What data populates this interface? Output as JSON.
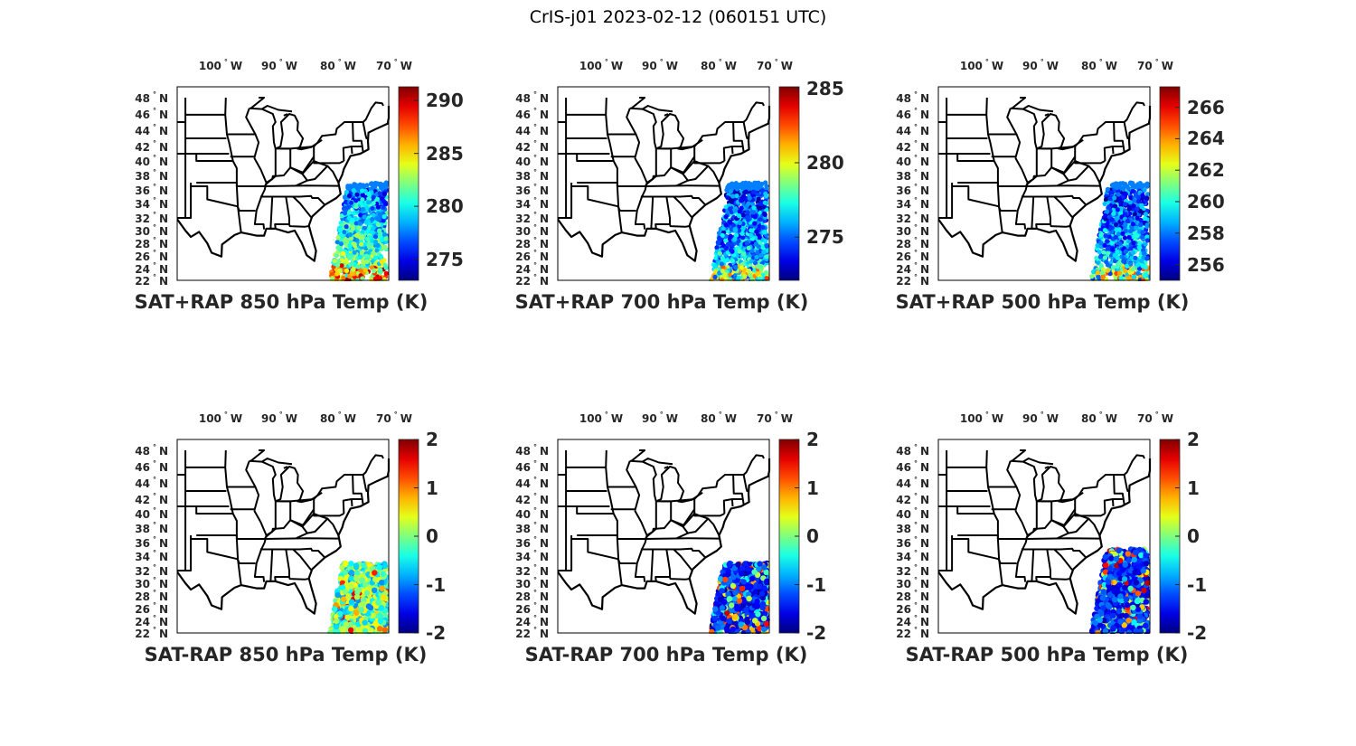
{
  "figure": {
    "title": "CrIS-j01 2023-02-12 (060151 UTC)"
  },
  "axes": {
    "lon_ticks": [
      "100",
      "90",
      "80",
      "70"
    ],
    "lon_suffix": "W",
    "lat_ticks": [
      "48",
      "46",
      "44",
      "42",
      "40",
      "38",
      "36",
      "34",
      "32",
      "30",
      "28",
      "26",
      "24",
      "22"
    ],
    "lat_suffix": "N",
    "degree_symbol": "°"
  },
  "colormap": "jet",
  "chart_data": [
    {
      "type": "scatter",
      "title": "SAT+RAP 850 hPa Temp (K)",
      "clim": [
        273.0,
        291.3
      ],
      "colorbar_ticks": [
        "275",
        "280",
        "285",
        "290"
      ],
      "swath_lat": [
        22,
        37
      ]
    },
    {
      "type": "scatter",
      "title": "SAT+RAP 700 hPa Temp (K)",
      "clim": [
        272.1,
        285.1
      ],
      "colorbar_ticks": [
        "275",
        "280",
        "285"
      ],
      "swath_lat": [
        22,
        37
      ]
    },
    {
      "type": "scatter",
      "title": "SAT+RAP 500 hPa Temp (K)",
      "clim": [
        255.0,
        267.3
      ],
      "colorbar_ticks": [
        "256",
        "258",
        "260",
        "262",
        "264",
        "266"
      ],
      "swath_lat": [
        22,
        37
      ]
    },
    {
      "type": "scatter",
      "title": "SAT-RAP 850 hPa Temp (K)",
      "clim": [
        -2,
        2
      ],
      "colorbar_ticks": [
        "-2",
        "-1",
        "0",
        "1",
        "2"
      ],
      "swath_lat": [
        22,
        33
      ]
    },
    {
      "type": "scatter",
      "title": "SAT-RAP 700 hPa Temp (K)",
      "clim": [
        -2,
        2
      ],
      "colorbar_ticks": [
        "-2",
        "-1",
        "0",
        "1",
        "2"
      ],
      "swath_lat": [
        22,
        33
      ]
    },
    {
      "type": "scatter",
      "title": "SAT-RAP 500 hPa Temp (K)",
      "clim": [
        -2,
        2
      ],
      "colorbar_ticks": [
        "-2",
        "-1",
        "0",
        "1",
        "2"
      ],
      "swath_lat": [
        22,
        35
      ]
    }
  ]
}
